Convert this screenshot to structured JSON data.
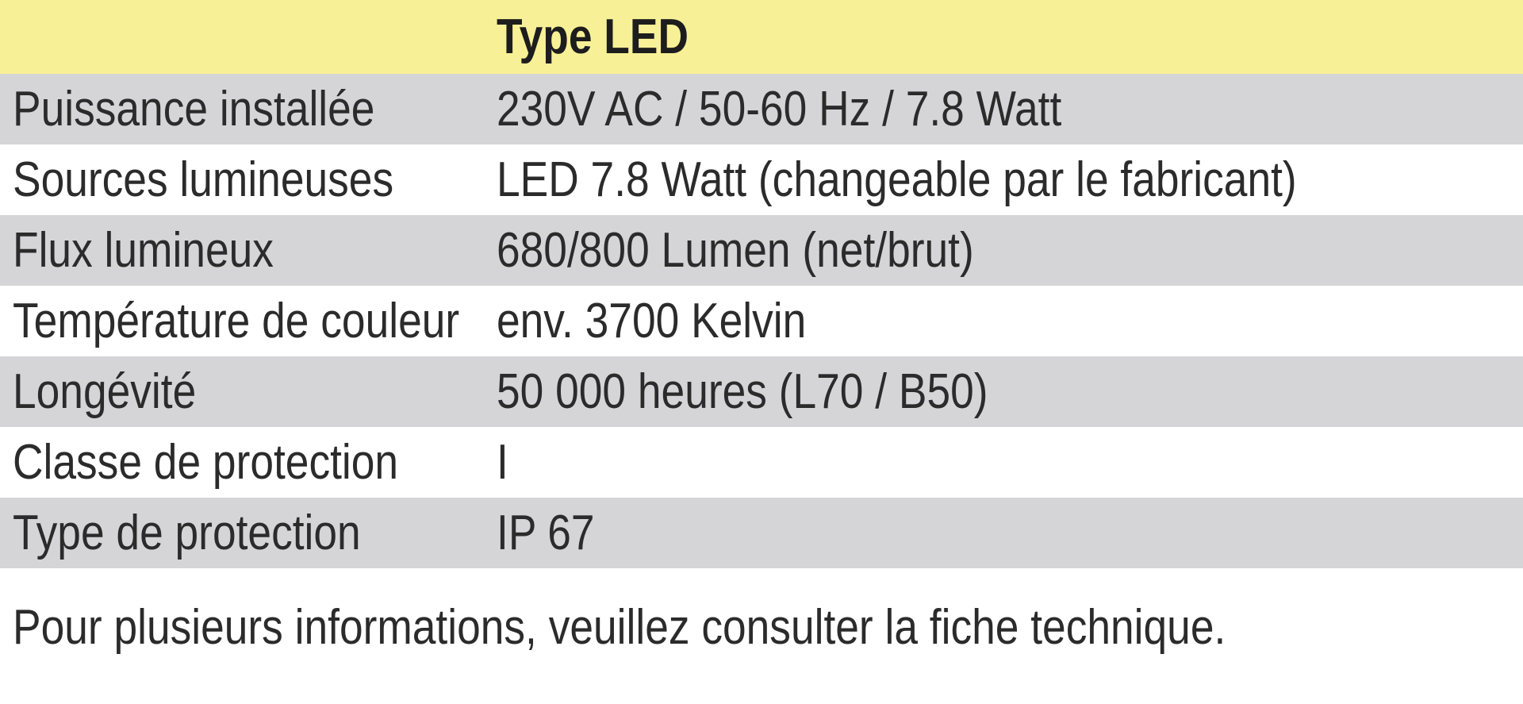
{
  "table": {
    "header": "Type LED",
    "rows": [
      {
        "label": "Puissance installée",
        "value": "230V AC / 50-60 Hz / 7.8 Watt"
      },
      {
        "label": "Sources lumineuses",
        "value": "LED 7.8 Watt (changeable par le fabricant)"
      },
      {
        "label": "Flux lumineux",
        "value": "680/800 Lumen (net/brut)"
      },
      {
        "label": "Température de couleur",
        "value": "env. 3700 Kelvin"
      },
      {
        "label": "Longévité",
        "value": "50 000 heures (L70 / B50)"
      },
      {
        "label": "Classe de protection",
        "value": "I"
      },
      {
        "label": "Type de protection",
        "value": "IP 67"
      }
    ]
  },
  "footer": "Pour plusieurs informations, veuillez consulter la fiche technique.",
  "colors": {
    "header_bg": "#f8f096",
    "stripe_bg": "#d5d5d7",
    "text": "#2b2b2b"
  }
}
